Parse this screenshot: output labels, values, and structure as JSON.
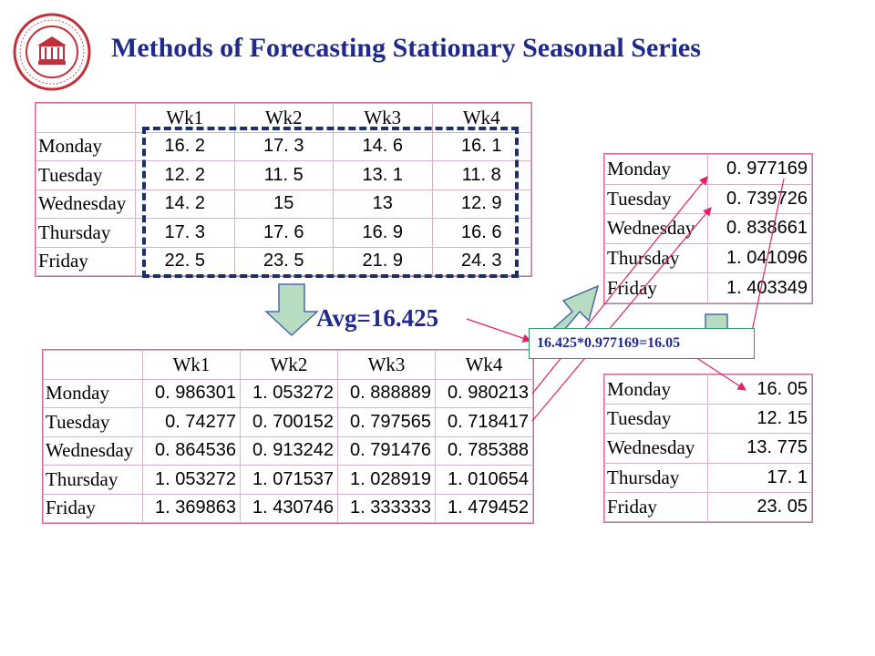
{
  "title": "Methods of Forecasting Stationary Seasonal Series",
  "avg_label": "Avg=16.425",
  "calc_label": "16.425*0.977169=16.05",
  "colors": {
    "title": "#1f2a8c",
    "dash": "#1c2f66",
    "arrow_fill": "#b7dcc0",
    "link": "#e0226a"
  },
  "table_raw": {
    "headers": [
      "Wk1",
      "Wk2",
      "Wk3",
      "Wk4"
    ],
    "rows": [
      {
        "label": "Monday",
        "values": [
          "16. 2",
          "17. 3",
          "14. 6",
          "16. 1"
        ]
      },
      {
        "label": "Tuesday",
        "values": [
          "12. 2",
          "11. 5",
          "13. 1",
          "11. 8"
        ]
      },
      {
        "label": "Wednesday",
        "values": [
          "14. 2",
          "15",
          "13",
          "12. 9"
        ]
      },
      {
        "label": "Thursday",
        "values": [
          "17. 3",
          "17. 6",
          "16. 9",
          "16. 6"
        ]
      },
      {
        "label": "Friday",
        "values": [
          "22. 5",
          "23. 5",
          "21. 9",
          "24. 3"
        ]
      }
    ]
  },
  "table_ratio": {
    "headers": [
      "Wk1",
      "Wk2",
      "Wk3",
      "Wk4"
    ],
    "rows": [
      {
        "label": "Monday",
        "values": [
          "0. 986301",
          "1. 053272",
          "0. 888889",
          "0. 980213"
        ]
      },
      {
        "label": "Tuesday",
        "values": [
          "0. 74277",
          "0. 700152",
          "0. 797565",
          "0. 718417"
        ]
      },
      {
        "label": "Wednesday",
        "values": [
          "0. 864536",
          "0. 913242",
          "0. 791476",
          "0. 785388"
        ]
      },
      {
        "label": "Thursday",
        "values": [
          "1. 053272",
          "1. 071537",
          "1. 028919",
          "1. 010654"
        ]
      },
      {
        "label": "Friday",
        "values": [
          "1. 369863",
          "1. 430746",
          "1. 333333",
          "1. 479452"
        ]
      }
    ]
  },
  "table_index": {
    "rows": [
      {
        "label": "Monday",
        "value": "0. 977169"
      },
      {
        "label": "Tuesday",
        "value": "0. 739726"
      },
      {
        "label": "Wednesday",
        "value": "0. 838661"
      },
      {
        "label": "Thursday",
        "value": "1. 041096"
      },
      {
        "label": "Friday",
        "value": "1. 403349"
      }
    ]
  },
  "table_forecast": {
    "rows": [
      {
        "label": "Monday",
        "value": "16. 05"
      },
      {
        "label": "Tuesday",
        "value": "12. 15"
      },
      {
        "label": "Wednesday",
        "value": "13. 775"
      },
      {
        "label": "Thursday",
        "value": "17. 1"
      },
      {
        "label": "Friday",
        "value": "23. 05"
      }
    ]
  }
}
